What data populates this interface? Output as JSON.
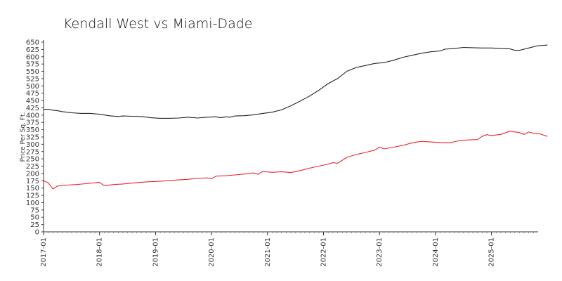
{
  "chart_data": {
    "type": "line",
    "title": "Kendall West vs Miami-Dade",
    "xlabel": "",
    "ylabel": "Price Per Sq. Ft.",
    "ylim": [
      0,
      650
    ],
    "yticks": [
      "0",
      "25",
      "50",
      "75",
      "100",
      "125",
      "150",
      "175",
      "200",
      "225",
      "250",
      "275",
      "300",
      "325",
      "350",
      "375",
      "400",
      "425",
      "450",
      "475",
      "500",
      "525",
      "550",
      "575",
      "600",
      "625",
      "650"
    ],
    "xticks": [
      "2017-01",
      "2018-01",
      "2019-01",
      "2020-01",
      "2021-01",
      "2022-01",
      "2023-01",
      "2024-01",
      "2025-01"
    ],
    "grid": false,
    "legend": "none",
    "series": [
      {
        "color": "#222222",
        "points": [
          [
            "2017-01",
            420
          ],
          [
            "2017-02",
            420
          ],
          [
            "2017-03",
            417
          ],
          [
            "2017-04",
            415
          ],
          [
            "2017-05",
            412
          ],
          [
            "2017-06",
            410
          ],
          [
            "2017-07",
            408
          ],
          [
            "2017-09",
            406
          ],
          [
            "2017-11",
            406
          ],
          [
            "2018-01",
            403
          ],
          [
            "2018-03",
            398
          ],
          [
            "2018-05",
            395
          ],
          [
            "2018-06",
            397
          ],
          [
            "2018-08",
            396
          ],
          [
            "2018-10",
            395
          ],
          [
            "2018-12",
            391
          ],
          [
            "2019-02",
            389
          ],
          [
            "2019-04",
            389
          ],
          [
            "2019-06",
            390
          ],
          [
            "2019-08",
            393
          ],
          [
            "2019-10",
            390
          ],
          [
            "2019-12",
            393
          ],
          [
            "2020-02",
            394
          ],
          [
            "2020-03",
            391
          ],
          [
            "2020-04",
            394
          ],
          [
            "2020-05",
            393
          ],
          [
            "2020-06",
            397
          ],
          [
            "2020-08",
            398
          ],
          [
            "2020-10",
            401
          ],
          [
            "2020-12",
            406
          ],
          [
            "2021-02",
            410
          ],
          [
            "2021-04",
            418
          ],
          [
            "2021-06",
            432
          ],
          [
            "2021-08",
            448
          ],
          [
            "2021-10",
            465
          ],
          [
            "2021-12",
            485
          ],
          [
            "2022-02",
            508
          ],
          [
            "2022-04",
            525
          ],
          [
            "2022-06",
            550
          ],
          [
            "2022-08",
            563
          ],
          [
            "2022-10",
            570
          ],
          [
            "2022-12",
            577
          ],
          [
            "2023-02",
            580
          ],
          [
            "2023-04",
            588
          ],
          [
            "2023-06",
            598
          ],
          [
            "2023-08",
            605
          ],
          [
            "2023-10",
            612
          ],
          [
            "2023-12",
            617
          ],
          [
            "2024-02",
            620
          ],
          [
            "2024-03",
            626
          ],
          [
            "2024-05",
            628
          ],
          [
            "2024-07",
            632
          ],
          [
            "2024-09",
            631
          ],
          [
            "2024-11",
            630
          ],
          [
            "2025-01",
            630
          ],
          [
            "2025-03",
            628
          ],
          [
            "2025-05",
            627
          ],
          [
            "2025-06",
            622
          ],
          [
            "2025-07",
            622
          ],
          [
            "2025-09",
            630
          ],
          [
            "2025-11",
            638
          ],
          [
            "2026-01",
            640
          ]
        ]
      },
      {
        "color": "#e8262c",
        "points": [
          [
            "2017-01",
            175
          ],
          [
            "2017-02",
            168
          ],
          [
            "2017-03",
            147
          ],
          [
            "2017-04",
            157
          ],
          [
            "2017-06",
            160
          ],
          [
            "2017-08",
            162
          ],
          [
            "2017-10",
            165
          ],
          [
            "2017-12",
            168
          ],
          [
            "2018-01",
            170
          ],
          [
            "2018-02",
            158
          ],
          [
            "2018-04",
            162
          ],
          [
            "2018-06",
            164
          ],
          [
            "2018-08",
            167
          ],
          [
            "2018-10",
            170
          ],
          [
            "2018-12",
            172
          ],
          [
            "2019-02",
            173
          ],
          [
            "2019-04",
            176
          ],
          [
            "2019-06",
            178
          ],
          [
            "2019-08",
            180
          ],
          [
            "2019-10",
            183
          ],
          [
            "2019-12",
            185
          ],
          [
            "2020-01",
            182
          ],
          [
            "2020-02",
            191
          ],
          [
            "2020-04",
            192
          ],
          [
            "2020-06",
            195
          ],
          [
            "2020-08",
            198
          ],
          [
            "2020-10",
            202
          ],
          [
            "2020-11",
            197
          ],
          [
            "2020-12",
            207
          ],
          [
            "2021-02",
            204
          ],
          [
            "2021-04",
            206
          ],
          [
            "2021-06",
            203
          ],
          [
            "2021-08",
            210
          ],
          [
            "2021-10",
            218
          ],
          [
            "2021-12",
            225
          ],
          [
            "2022-02",
            232
          ],
          [
            "2022-03",
            237
          ],
          [
            "2022-04",
            235
          ],
          [
            "2022-06",
            255
          ],
          [
            "2022-08",
            265
          ],
          [
            "2022-10",
            272
          ],
          [
            "2022-12",
            280
          ],
          [
            "2023-01",
            290
          ],
          [
            "2023-02",
            284
          ],
          [
            "2023-04",
            290
          ],
          [
            "2023-06",
            296
          ],
          [
            "2023-08",
            305
          ],
          [
            "2023-10",
            310
          ],
          [
            "2023-12",
            308
          ],
          [
            "2024-02",
            306
          ],
          [
            "2024-04",
            305
          ],
          [
            "2024-06",
            312
          ],
          [
            "2024-08",
            315
          ],
          [
            "2024-10",
            316
          ],
          [
            "2024-11",
            327
          ],
          [
            "2024-12",
            333
          ],
          [
            "2025-01",
            330
          ],
          [
            "2025-03",
            334
          ],
          [
            "2025-05",
            345
          ],
          [
            "2025-07",
            340
          ],
          [
            "2025-08",
            334
          ],
          [
            "2025-09",
            342
          ],
          [
            "2025-10",
            338
          ],
          [
            "2025-11",
            338
          ],
          [
            "2026-01",
            327
          ]
        ]
      }
    ]
  }
}
